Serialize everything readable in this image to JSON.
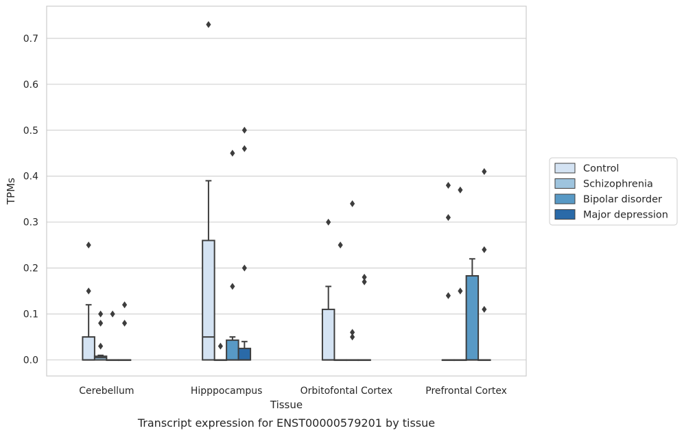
{
  "chart_data": {
    "type": "boxplot",
    "xlabel": "Tissue",
    "ylabel": "TPMs",
    "caption": "Transcript expression for ENST00000579201 by tissue",
    "ylim": [
      -0.035,
      0.77
    ],
    "yticks": [
      "0.0",
      "0.1",
      "0.2",
      "0.3",
      "0.4",
      "0.5",
      "0.6",
      "0.7"
    ],
    "grid": "horizontal",
    "legend_position": "right",
    "categories": [
      "Cerebellum",
      "Hipppocampus",
      "Orbitofontal Cortex",
      "Prefrontal Cortex"
    ],
    "series": [
      {
        "name": "Control",
        "color": "#d4e3f3",
        "boxes": [
          {
            "q1": 0.0,
            "median": 0.0,
            "q3": 0.05,
            "whisker_low": 0.0,
            "whisker_high": 0.12,
            "outliers": [
              0.15,
              0.25
            ]
          },
          {
            "q1": 0.0,
            "median": 0.05,
            "q3": 0.26,
            "whisker_low": 0.0,
            "whisker_high": 0.39,
            "outliers": [
              0.73
            ]
          },
          {
            "q1": 0.0,
            "median": 0.0,
            "q3": 0.11,
            "whisker_low": 0.0,
            "whisker_high": 0.16,
            "outliers": [
              0.3
            ]
          },
          {
            "q1": 0.0,
            "median": 0.0,
            "q3": 0.0,
            "whisker_low": 0.0,
            "whisker_high": 0.0,
            "outliers": [
              0.14,
              0.31,
              0.38
            ]
          }
        ]
      },
      {
        "name": "Schizophrenia",
        "color": "#9ec4de",
        "boxes": [
          {
            "q1": 0.0,
            "median": 0.005,
            "q3": 0.008,
            "whisker_low": 0.0,
            "whisker_high": 0.01,
            "outliers": [
              0.03,
              0.08,
              0.1
            ]
          },
          {
            "q1": 0.0,
            "median": 0.0,
            "q3": 0.0,
            "whisker_low": 0.0,
            "whisker_high": 0.0,
            "outliers": [
              0.03
            ]
          },
          {
            "q1": 0.0,
            "median": 0.0,
            "q3": 0.0,
            "whisker_low": 0.0,
            "whisker_high": 0.0,
            "outliers": [
              0.25
            ]
          },
          {
            "q1": 0.0,
            "median": 0.0,
            "q3": 0.0,
            "whisker_low": 0.0,
            "whisker_high": 0.0,
            "outliers": [
              0.15,
              0.37
            ]
          }
        ]
      },
      {
        "name": "Bipolar disorder",
        "color": "#5899c5",
        "boxes": [
          {
            "q1": 0.0,
            "median": 0.0,
            "q3": 0.0,
            "whisker_low": 0.0,
            "whisker_high": 0.0,
            "outliers": [
              0.1
            ]
          },
          {
            "q1": 0.0,
            "median": 0.0,
            "q3": 0.043,
            "whisker_low": 0.0,
            "whisker_high": 0.05,
            "outliers": [
              0.16,
              0.45
            ]
          },
          {
            "q1": 0.0,
            "median": 0.0,
            "q3": 0.0,
            "whisker_low": 0.0,
            "whisker_high": 0.0,
            "outliers": [
              0.05,
              0.06,
              0.34
            ]
          },
          {
            "q1": 0.0,
            "median": 0.0,
            "q3": 0.183,
            "whisker_low": 0.0,
            "whisker_high": 0.22,
            "outliers": []
          }
        ]
      },
      {
        "name": "Major depression",
        "color": "#2a6aa8",
        "boxes": [
          {
            "q1": 0.0,
            "median": 0.0,
            "q3": 0.0,
            "whisker_low": 0.0,
            "whisker_high": 0.0,
            "outliers": [
              0.08,
              0.12
            ]
          },
          {
            "q1": 0.0,
            "median": 0.0,
            "q3": 0.025,
            "whisker_low": 0.0,
            "whisker_high": 0.04,
            "outliers": [
              0.2,
              0.46,
              0.5
            ]
          },
          {
            "q1": 0.0,
            "median": 0.0,
            "q3": 0.0,
            "whisker_low": 0.0,
            "whisker_high": 0.0,
            "outliers": [
              0.17,
              0.18
            ]
          },
          {
            "q1": 0.0,
            "median": 0.0,
            "q3": 0.0,
            "whisker_low": 0.0,
            "whisker_high": 0.0,
            "outliers": [
              0.11,
              0.24,
              0.41
            ]
          }
        ]
      }
    ]
  }
}
